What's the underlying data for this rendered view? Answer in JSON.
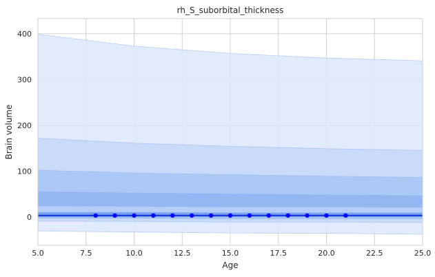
{
  "chart_data": {
    "type": "line",
    "title": "rh_S_suborbital_thickness",
    "xlabel": "Age",
    "ylabel": "Brain volume",
    "xlim": [
      5,
      25
    ],
    "ylim": [
      -62,
      433
    ],
    "grid": true,
    "xticks": [
      5.0,
      7.5,
      10.0,
      12.5,
      15.0,
      17.5,
      20.0,
      22.5,
      25.0
    ],
    "xtick_labels": [
      "5.0",
      "7.5",
      "10.0",
      "12.5",
      "15.0",
      "17.5",
      "20.0",
      "22.5",
      "25.0"
    ],
    "yticks": [
      0,
      100,
      200,
      300,
      400
    ],
    "ytick_labels": [
      "0",
      "100",
      "200",
      "300",
      "400"
    ],
    "bands": [
      {
        "x": [
          5,
          10,
          15,
          20,
          25
        ],
        "upper": [
          399,
          373,
          357,
          347,
          341
        ],
        "lower": [
          -31,
          -33,
          -35,
          -36,
          -38
        ],
        "color": "#dce8fb"
      },
      {
        "x": [
          5,
          10,
          15,
          20,
          25
        ],
        "upper": [
          172,
          161,
          154,
          149,
          145
        ],
        "lower": [
          -9,
          -10,
          -11,
          -11,
          -12
        ],
        "color": "#c5d8f8"
      },
      {
        "x": [
          5,
          10,
          15,
          20,
          25
        ],
        "upper": [
          102,
          96,
          92,
          89,
          86
        ],
        "lower": [
          -3,
          -3,
          -4,
          -4,
          -4
        ],
        "color": "#a7c4f4"
      },
      {
        "x": [
          5,
          10,
          15,
          20,
          25
        ],
        "upper": [
          55,
          52,
          50,
          48,
          46
        ],
        "lower": [
          0,
          0,
          0,
          0,
          0
        ],
        "color": "#8fb3f2"
      },
      {
        "x": [
          5,
          10,
          15,
          20,
          25
        ],
        "upper": [
          24,
          23,
          22,
          22,
          21
        ],
        "lower": [
          -1,
          -1,
          -1,
          -1,
          -1
        ],
        "color": "#bcd2f7"
      },
      {
        "x": [
          5,
          10,
          15,
          20,
          25
        ],
        "upper": [
          10,
          10,
          9,
          9,
          9
        ],
        "lower": [
          0,
          0,
          0,
          0,
          0
        ],
        "color": "#6d9bef"
      }
    ],
    "series": [
      {
        "x": [
          5,
          10,
          15,
          20,
          25
        ],
        "y": [
          3,
          3,
          3,
          3,
          3
        ],
        "color": "#0d2fd6"
      }
    ],
    "points": {
      "x": [
        8,
        9,
        10,
        11,
        12,
        13,
        14,
        15,
        16,
        17,
        18,
        19,
        20,
        21
      ],
      "y": [
        3,
        3,
        3,
        3,
        3,
        3,
        3,
        3,
        3,
        3,
        3,
        3,
        3,
        3
      ],
      "color": "#0000ff"
    }
  }
}
